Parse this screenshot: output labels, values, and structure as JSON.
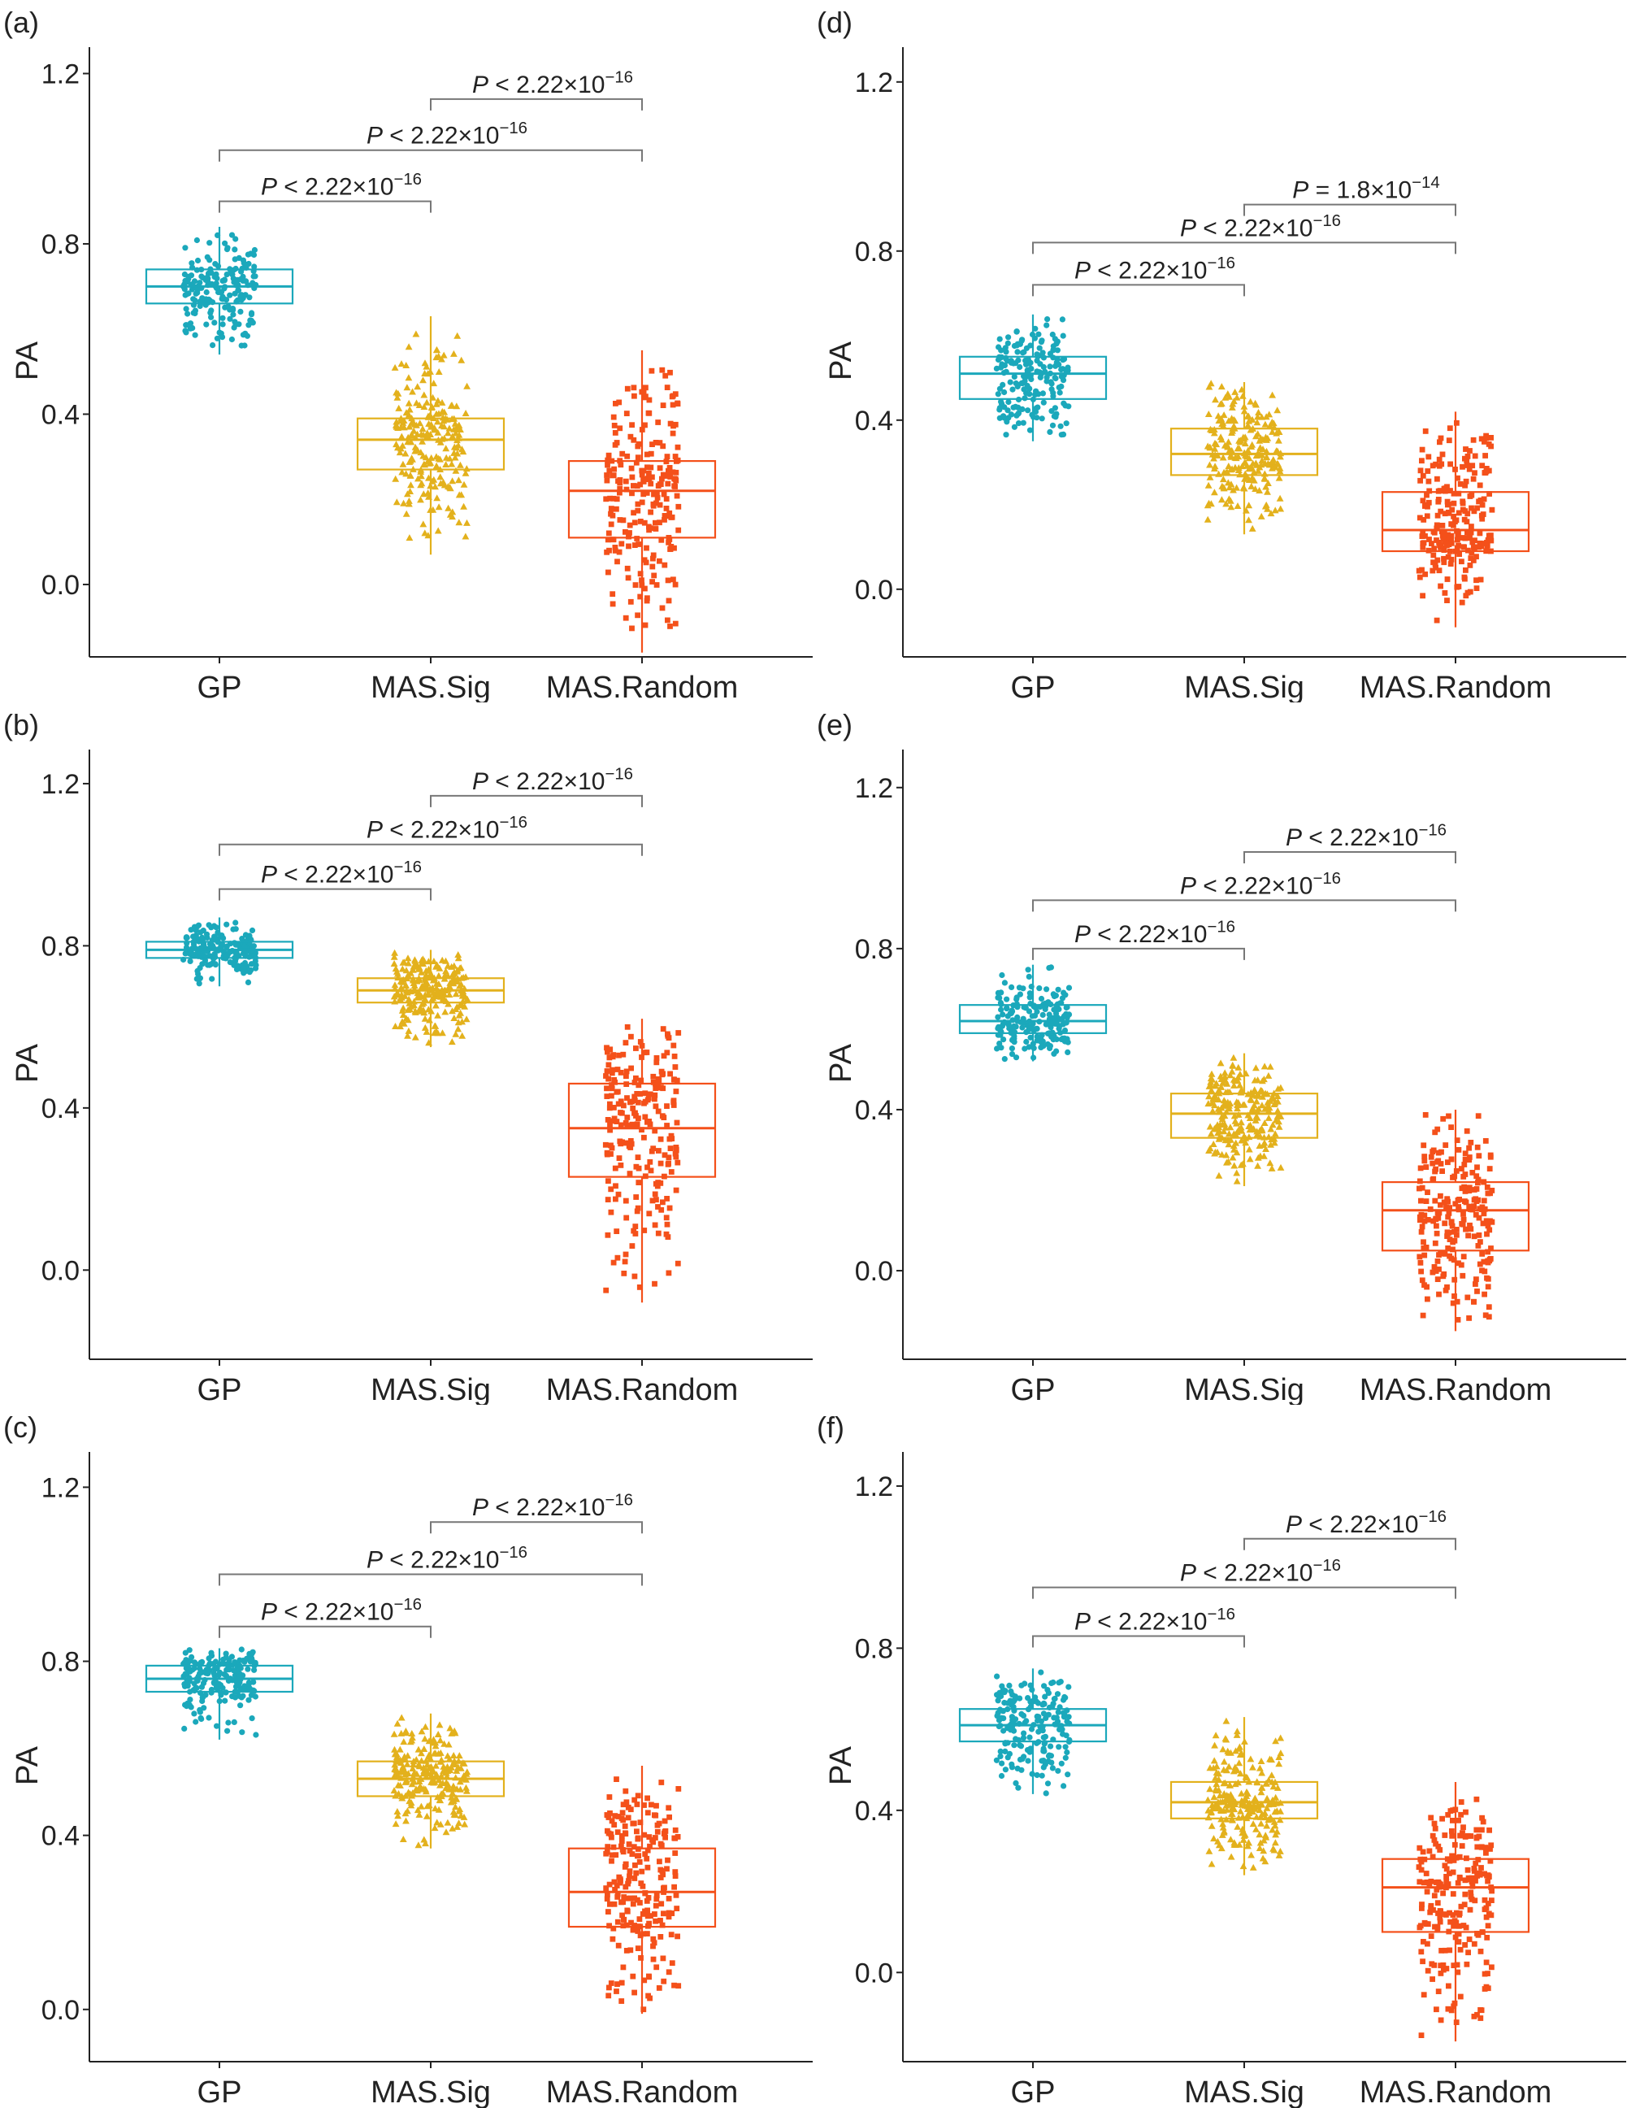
{
  "chart_data": [
    {
      "type": "boxplot",
      "panel_label": "(a)",
      "ylabel": "PA",
      "y_ticks": [
        "1.2",
        "0.8",
        "0.4",
        "0.0"
      ],
      "y_tick_values": [
        1.2,
        0.8,
        0.4,
        0.0
      ],
      "ylim": [
        -0.17,
        1.22
      ],
      "categories": [
        "GP",
        "MAS.Sig",
        "MAS.Random"
      ],
      "series_colors": [
        "#1ba8bb",
        "#e3b11c",
        "#f4501a"
      ],
      "series_shapes": [
        "circle",
        "triangle",
        "square"
      ],
      "boxes": [
        {
          "q1": 0.66,
          "median": 0.7,
          "q3": 0.74,
          "whisker_low": 0.54,
          "whisker_high": 0.84
        },
        {
          "q1": 0.27,
          "median": 0.34,
          "q3": 0.39,
          "whisker_low": 0.07,
          "whisker_high": 0.63
        },
        {
          "q1": 0.11,
          "median": 0.22,
          "q3": 0.29,
          "whisker_low": -0.16,
          "whisker_high": 0.55
        }
      ],
      "comparisons": [
        {
          "from": "MAS.Sig",
          "to": "MAS.Random",
          "label": "P < 2.22×10⁻¹⁶",
          "y": 1.14
        },
        {
          "from": "GP",
          "to": "MAS.Random",
          "label": "P < 2.22×10⁻¹⁶",
          "y": 1.02
        },
        {
          "from": "GP",
          "to": "MAS.Sig",
          "label": "P < 2.22×10⁻¹⁶",
          "y": 0.9
        }
      ]
    },
    {
      "type": "boxplot",
      "panel_label": "(d)",
      "ylabel": "PA",
      "y_ticks": [
        "1.2",
        "0.8",
        "0.4",
        "0.0"
      ],
      "y_tick_values": [
        1.2,
        0.8,
        0.4,
        0.0
      ],
      "ylim": [
        -0.16,
        1.24
      ],
      "categories": [
        "GP",
        "MAS.Sig",
        "MAS.Random"
      ],
      "series_colors": [
        "#1ba8bb",
        "#e3b11c",
        "#f4501a"
      ],
      "series_shapes": [
        "circle",
        "triangle",
        "square"
      ],
      "boxes": [
        {
          "q1": 0.45,
          "median": 0.51,
          "q3": 0.55,
          "whisker_low": 0.35,
          "whisker_high": 0.65
        },
        {
          "q1": 0.27,
          "median": 0.32,
          "q3": 0.38,
          "whisker_low": 0.13,
          "whisker_high": 0.49
        },
        {
          "q1": 0.09,
          "median": 0.14,
          "q3": 0.23,
          "whisker_low": -0.09,
          "whisker_high": 0.42
        }
      ],
      "comparisons": [
        {
          "from": "MAS.Sig",
          "to": "MAS.Random",
          "label": "P = 1.8×10⁻¹⁴",
          "y": 0.91
        },
        {
          "from": "GP",
          "to": "MAS.Random",
          "label": "P < 2.22×10⁻¹⁶",
          "y": 0.82
        },
        {
          "from": "GP",
          "to": "MAS.Sig",
          "label": "P < 2.22×10⁻¹⁶",
          "y": 0.72
        }
      ]
    },
    {
      "type": "boxplot",
      "panel_label": "(b)",
      "ylabel": "PA",
      "y_ticks": [
        "1.2",
        "0.8",
        "0.4",
        "0.0"
      ],
      "y_tick_values": [
        1.2,
        0.8,
        0.4,
        0.0
      ],
      "ylim": [
        -0.22,
        1.24
      ],
      "categories": [
        "GP",
        "MAS.Sig",
        "MAS.Random"
      ],
      "series_colors": [
        "#1ba8bb",
        "#e3b11c",
        "#f4501a"
      ],
      "series_shapes": [
        "circle",
        "triangle",
        "square"
      ],
      "boxes": [
        {
          "q1": 0.77,
          "median": 0.79,
          "q3": 0.81,
          "whisker_low": 0.7,
          "whisker_high": 0.87
        },
        {
          "q1": 0.66,
          "median": 0.69,
          "q3": 0.72,
          "whisker_low": 0.55,
          "whisker_high": 0.79
        },
        {
          "q1": 0.23,
          "median": 0.35,
          "q3": 0.46,
          "whisker_low": -0.08,
          "whisker_high": 0.62
        }
      ],
      "comparisons": [
        {
          "from": "MAS.Sig",
          "to": "MAS.Random",
          "label": "P < 2.22×10⁻¹⁶",
          "y": 1.17
        },
        {
          "from": "GP",
          "to": "MAS.Random",
          "label": "P < 2.22×10⁻¹⁶",
          "y": 1.05
        },
        {
          "from": "GP",
          "to": "MAS.Sig",
          "label": "P < 2.22×10⁻¹⁶",
          "y": 0.94
        }
      ]
    },
    {
      "type": "boxplot",
      "panel_label": "(e)",
      "ylabel": "PA",
      "y_ticks": [
        "1.2",
        "0.8",
        "0.4",
        "0.0"
      ],
      "y_tick_values": [
        1.2,
        0.8,
        0.4,
        0.0
      ],
      "ylim": [
        -0.22,
        1.25
      ],
      "categories": [
        "GP",
        "MAS.Sig",
        "MAS.Random"
      ],
      "series_colors": [
        "#1ba8bb",
        "#e3b11c",
        "#f4501a"
      ],
      "series_shapes": [
        "circle",
        "triangle",
        "square"
      ],
      "boxes": [
        {
          "q1": 0.59,
          "median": 0.62,
          "q3": 0.66,
          "whisker_low": 0.52,
          "whisker_high": 0.76
        },
        {
          "q1": 0.33,
          "median": 0.39,
          "q3": 0.44,
          "whisker_low": 0.21,
          "whisker_high": 0.54
        },
        {
          "q1": 0.05,
          "median": 0.15,
          "q3": 0.22,
          "whisker_low": -0.15,
          "whisker_high": 0.4
        }
      ],
      "comparisons": [
        {
          "from": "MAS.Sig",
          "to": "MAS.Random",
          "label": "P < 2.22×10⁻¹⁶",
          "y": 1.04
        },
        {
          "from": "GP",
          "to": "MAS.Random",
          "label": "P < 2.22×10⁻¹⁶",
          "y": 0.92
        },
        {
          "from": "GP",
          "to": "MAS.Sig",
          "label": "P < 2.22×10⁻¹⁶",
          "y": 0.8
        }
      ]
    },
    {
      "type": "boxplot",
      "panel_label": "(c)",
      "ylabel": "PA",
      "y_ticks": [
        "1.2",
        "0.8",
        "0.4",
        "0.0"
      ],
      "y_tick_values": [
        1.2,
        0.8,
        0.4,
        0.0
      ],
      "ylim": [
        -0.12,
        1.24
      ],
      "categories": [
        "GP",
        "MAS.Sig",
        "MAS.Random"
      ],
      "series_colors": [
        "#1ba8bb",
        "#e3b11c",
        "#f4501a"
      ],
      "series_shapes": [
        "circle",
        "triangle",
        "square"
      ],
      "boxes": [
        {
          "q1": 0.73,
          "median": 0.76,
          "q3": 0.79,
          "whisker_low": 0.62,
          "whisker_high": 0.83
        },
        {
          "q1": 0.49,
          "median": 0.53,
          "q3": 0.57,
          "whisker_low": 0.37,
          "whisker_high": 0.68
        },
        {
          "q1": 0.19,
          "median": 0.27,
          "q3": 0.37,
          "whisker_low": -0.01,
          "whisker_high": 0.56
        }
      ],
      "comparisons": [
        {
          "from": "MAS.Sig",
          "to": "MAS.Random",
          "label": "P < 2.22×10⁻¹⁶",
          "y": 1.12
        },
        {
          "from": "GP",
          "to": "MAS.Random",
          "label": "P < 2.22×10⁻¹⁶",
          "y": 1.0
        },
        {
          "from": "GP",
          "to": "MAS.Sig",
          "label": "P < 2.22×10⁻¹⁶",
          "y": 0.88
        }
      ]
    },
    {
      "type": "boxplot",
      "panel_label": "(f)",
      "ylabel": "PA",
      "y_ticks": [
        "1.2",
        "0.8",
        "0.4",
        "0.0"
      ],
      "y_tick_values": [
        1.2,
        0.8,
        0.4,
        0.0
      ],
      "ylim": [
        -0.22,
        1.24
      ],
      "categories": [
        "GP",
        "MAS.Sig",
        "MAS.Random"
      ],
      "series_colors": [
        "#1ba8bb",
        "#e3b11c",
        "#f4501a"
      ],
      "series_shapes": [
        "circle",
        "triangle",
        "square"
      ],
      "boxes": [
        {
          "q1": 0.57,
          "median": 0.61,
          "q3": 0.65,
          "whisker_low": 0.44,
          "whisker_high": 0.75
        },
        {
          "q1": 0.38,
          "median": 0.42,
          "q3": 0.47,
          "whisker_low": 0.24,
          "whisker_high": 0.63
        },
        {
          "q1": 0.1,
          "median": 0.21,
          "q3": 0.28,
          "whisker_low": -0.17,
          "whisker_high": 0.47
        }
      ],
      "comparisons": [
        {
          "from": "MAS.Sig",
          "to": "MAS.Random",
          "label": "P < 2.22×10⁻¹⁶",
          "y": 1.07
        },
        {
          "from": "GP",
          "to": "MAS.Random",
          "label": "P < 2.22×10⁻¹⁶",
          "y": 0.95
        },
        {
          "from": "GP",
          "to": "MAS.Sig",
          "label": "P < 2.22×10⁻¹⁶",
          "y": 0.83
        }
      ]
    }
  ]
}
